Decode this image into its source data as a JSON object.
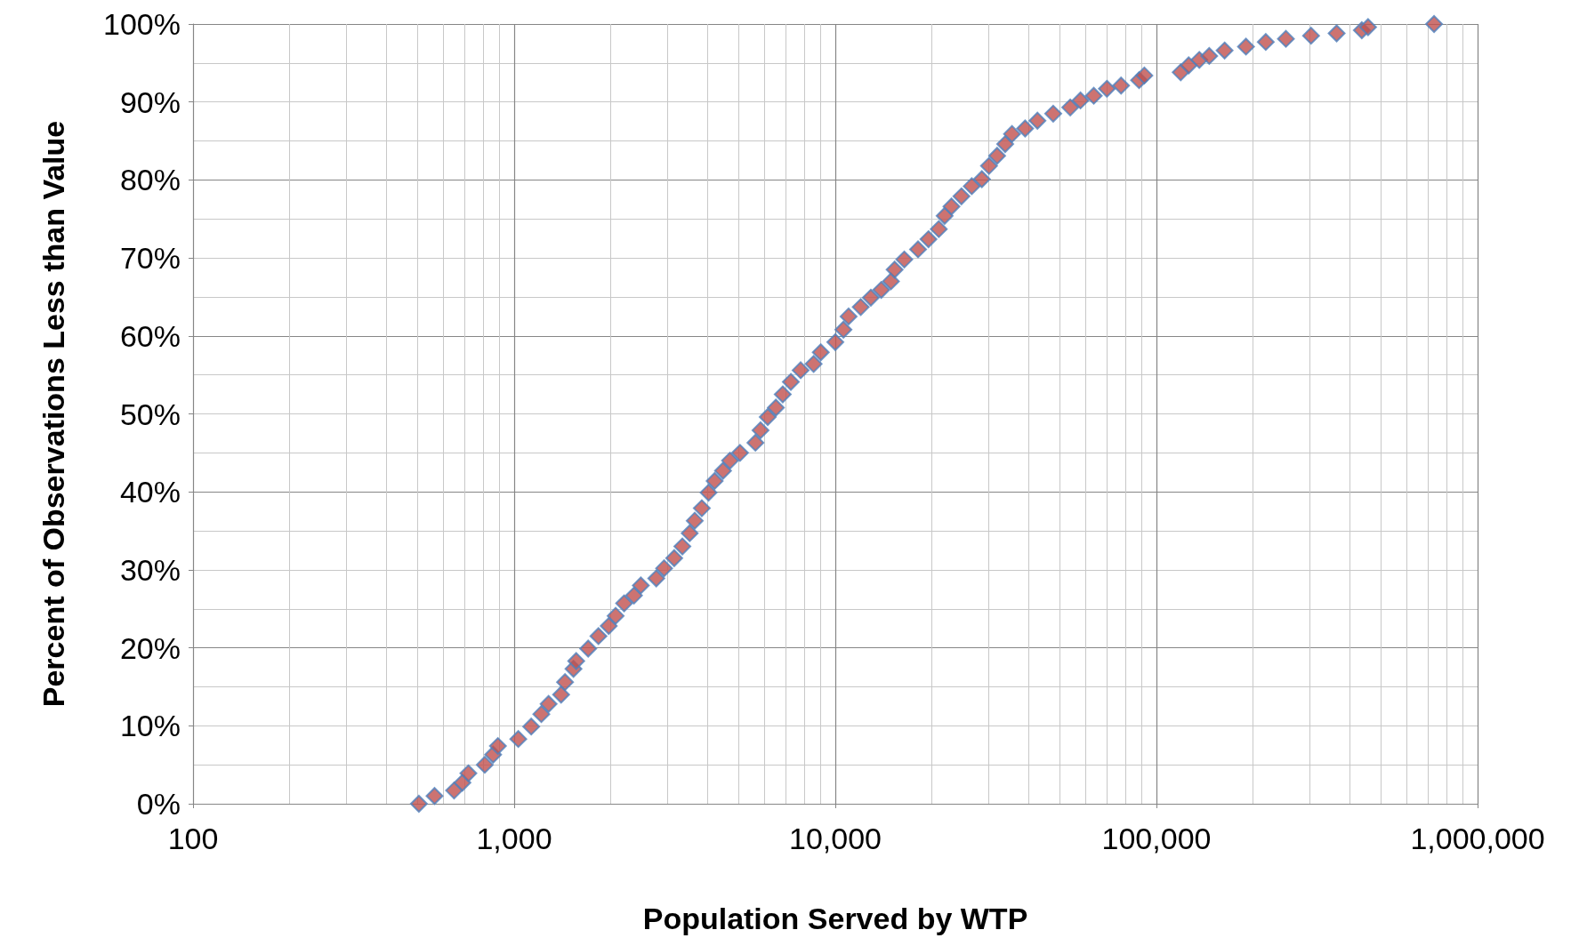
{
  "chart_data": {
    "type": "scatter",
    "xlabel": "Population Served by WTP",
    "ylabel": "Percent of Observations Less than Value",
    "x": [
      505,
      565,
      650,
      690,
      720,
      810,
      860,
      890,
      1030,
      1130,
      1215,
      1280,
      1400,
      1440,
      1530,
      1560,
      1700,
      1830,
      1970,
      2070,
      2200,
      2360,
      2480,
      2770,
      2930,
      3150,
      3340,
      3520,
      3650,
      3840,
      4030,
      4210,
      4470,
      4700,
      5050,
      5640,
      5850,
      6160,
      6530,
      6860,
      7270,
      7800,
      8560,
      9010,
      10000,
      10600,
      11000,
      12000,
      12900,
      13900,
      14900,
      15300,
      16400,
      18100,
      19500,
      21000,
      21900,
      23000,
      24700,
      26600,
      28600,
      30100,
      31900,
      33800,
      35500,
      39000,
      42600,
      47700,
      53900,
      58000,
      63800,
      70100,
      77600,
      88300,
      91700,
      119000,
      126000,
      136000,
      146000,
      163000,
      190000,
      219000,
      253000,
      303000,
      364000,
      436000,
      456000,
      732000
    ],
    "series": [
      {
        "color": "#c0504d",
        "values": [
          0,
          1,
          1.7,
          2.7,
          3.9,
          5,
          6.3,
          7.4,
          8.3,
          9.9,
          11.5,
          12.8,
          14,
          15.6,
          17.3,
          18.3,
          19.9,
          21.5,
          22.8,
          24.1,
          25.7,
          26.7,
          28,
          28.9,
          30.2,
          31.5,
          33,
          34.7,
          36.3,
          37.9,
          39.9,
          41.4,
          42.7,
          44,
          45,
          46.3,
          47.9,
          49.6,
          50.8,
          52.5,
          54.1,
          55.6,
          56.4,
          57.9,
          59.2,
          60.8,
          62.5,
          63.7,
          64.9,
          65.9,
          67,
          68.5,
          69.8,
          71.1,
          72.4,
          73.7,
          75.4,
          76.6,
          77.9,
          79.2,
          80.1,
          81.8,
          83.1,
          84.6,
          85.9,
          86.6,
          87.6,
          88.5,
          89.3,
          90.2,
          90.8,
          91.7,
          92.1,
          92.8,
          93.4,
          93.8,
          94.7,
          95.4,
          95.9,
          96.6,
          97.1,
          97.7,
          98.1,
          98.5,
          98.8,
          99.2,
          99.6,
          100
        ]
      }
    ],
    "xlim": [
      100,
      1000000
    ],
    "xticks": [
      100,
      {
        "value": 1000,
        "label": "1,000"
      },
      {
        "value": 10000,
        "label": "10,000"
      },
      {
        "value": 100000,
        "label": "100,000"
      },
      {
        "value": 1000000,
        "label": "1,000,000"
      }
    ],
    "ylim": [
      0,
      100
    ],
    "yticks": [
      {
        "value": 0,
        "label": "0%"
      },
      {
        "value": 10,
        "label": "10%"
      },
      {
        "value": 20,
        "label": "20%"
      },
      {
        "value": 30,
        "label": "30%"
      },
      {
        "value": 40,
        "label": "40%"
      },
      {
        "value": 50,
        "label": "50%"
      },
      {
        "value": 60,
        "label": "60%"
      },
      {
        "value": 70,
        "label": "70%"
      },
      {
        "value": 80,
        "label": "80%"
      },
      {
        "value": 90,
        "label": "90%"
      },
      {
        "value": 100,
        "label": "100%"
      }
    ],
    "log": "x",
    "grid": true,
    "marker": "diamond"
  }
}
